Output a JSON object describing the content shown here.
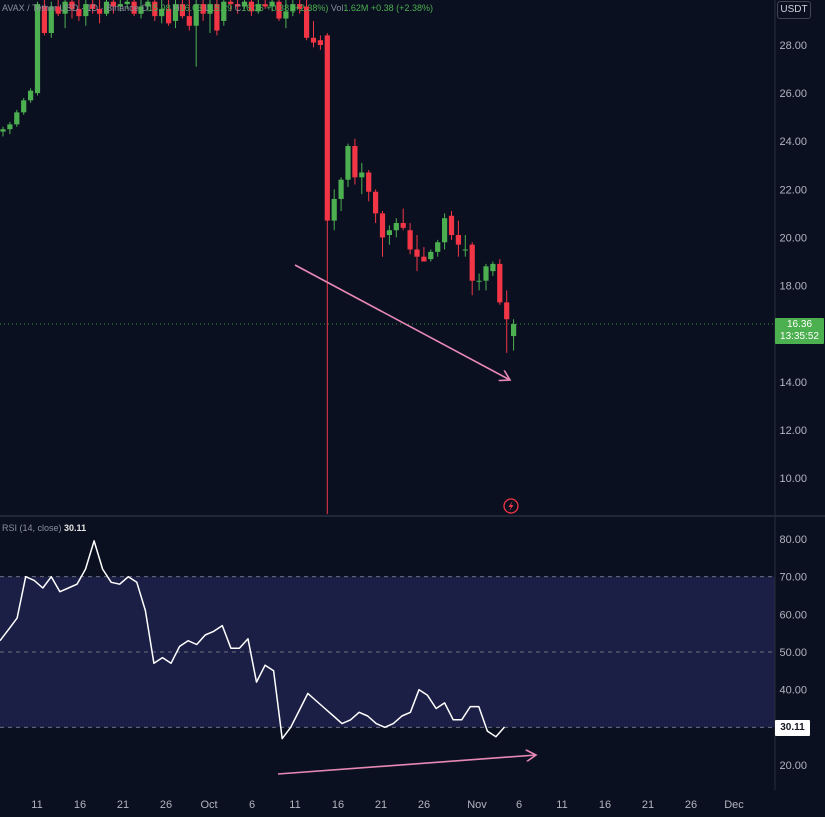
{
  "header": {
    "symbol": "AVAX / Tether USD",
    "interval": "1D",
    "exchange": "Binance",
    "ohlc": [
      {
        "label": "O",
        "value": "15.98"
      },
      {
        "label": "H",
        "value": "16.63"
      },
      {
        "label": "L",
        "value": "15.29"
      },
      {
        "label": "C",
        "value": "16.36"
      }
    ],
    "change": "+0.38 (+2.38%)",
    "volume_label": "Vol",
    "volume_value": "1.62M",
    "volume_change": "+0.38 (+2.38%)"
  },
  "currency_badge": "USDT",
  "price_badge": {
    "price": "16.36",
    "countdown": "13:35:52"
  },
  "rsi_legend": {
    "label": "RSI (14, close)",
    "value": "30.11"
  },
  "rsi_badge": "30.11",
  "colors": {
    "background": "#0b1021",
    "up": "#4caf50",
    "down": "#f23645",
    "rsi_line": "#ffffff",
    "rsi_band": "#1c1f45",
    "arrow": "#e889b5",
    "alert_icon": "#f23645"
  },
  "icons": {
    "alert": "lightning-bolt-icon"
  },
  "chart_data": [
    {
      "type": "candlestick",
      "name": "price",
      "y_ticks": [
        "10.00",
        "12.00",
        "14.00",
        "16.00",
        "18.00",
        "20.00",
        "22.00",
        "24.00",
        "26.00",
        "28.00"
      ],
      "ylim": [
        8.5,
        29.7
      ],
      "x_ticks": [
        "11",
        "16",
        "21",
        "26",
        "Oct",
        "6",
        "11",
        "16",
        "21",
        "26",
        "Nov",
        "6",
        "11",
        "16",
        "21",
        "26",
        "Dec"
      ],
      "ohlc": [
        [
          24.4,
          24.6,
          24.2,
          24.5
        ],
        [
          24.5,
          24.8,
          24.3,
          24.7
        ],
        [
          24.7,
          25.3,
          24.6,
          25.2
        ],
        [
          25.2,
          25.8,
          25.1,
          25.7
        ],
        [
          25.7,
          26.2,
          25.6,
          26.1
        ],
        [
          26.0,
          29.8,
          25.9,
          29.7
        ],
        [
          29.6,
          29.9,
          28.4,
          28.5
        ],
        [
          28.5,
          29.8,
          28.3,
          29.6
        ],
        [
          29.6,
          29.9,
          29.2,
          29.3
        ],
        [
          29.3,
          29.9,
          28.7,
          29.8
        ],
        [
          29.8,
          29.9,
          29.1,
          29.5
        ],
        [
          29.5,
          29.9,
          29.0,
          29.2
        ],
        [
          29.2,
          29.9,
          28.8,
          29.7
        ],
        [
          29.7,
          29.9,
          29.3,
          29.5
        ],
        [
          29.5,
          29.9,
          28.9,
          29.3
        ],
        [
          29.3,
          29.9,
          29.2,
          29.8
        ],
        [
          29.8,
          29.9,
          29.3,
          29.6
        ],
        [
          29.6,
          29.9,
          29.4,
          29.7
        ],
        [
          29.7,
          29.9,
          29.5,
          29.8
        ],
        [
          29.8,
          29.9,
          29.2,
          29.3
        ],
        [
          29.3,
          29.9,
          29.1,
          29.6
        ],
        [
          29.6,
          29.9,
          29.4,
          29.8
        ],
        [
          29.8,
          29.9,
          29.0,
          29.2
        ],
        [
          29.2,
          29.9,
          28.9,
          29.5
        ],
        [
          29.5,
          29.9,
          28.8,
          28.9
        ],
        [
          29.0,
          29.9,
          28.7,
          29.7
        ],
        [
          29.7,
          29.9,
          29.1,
          29.2
        ],
        [
          29.2,
          29.9,
          28.6,
          28.8
        ],
        [
          28.8,
          29.9,
          27.1,
          29.7
        ],
        [
          29.7,
          29.9,
          29.0,
          29.3
        ],
        [
          29.3,
          29.9,
          28.5,
          29.7
        ],
        [
          29.7,
          29.9,
          28.4,
          28.6
        ],
        [
          29.0,
          29.9,
          28.8,
          29.8
        ],
        [
          29.8,
          29.9,
          29.4,
          29.7
        ],
        [
          29.7,
          29.9,
          29.3,
          29.6
        ],
        [
          29.6,
          29.9,
          29.5,
          29.8
        ],
        [
          29.8,
          29.9,
          29.2,
          29.4
        ],
        [
          29.4,
          29.9,
          29.3,
          29.7
        ],
        [
          29.7,
          29.9,
          29.5,
          29.6
        ],
        [
          29.6,
          29.9,
          29.4,
          29.8
        ],
        [
          29.8,
          29.9,
          29.0,
          29.1
        ],
        [
          29.1,
          29.9,
          28.7,
          29.4
        ],
        [
          29.4,
          29.9,
          29.2,
          29.7
        ],
        [
          29.7,
          29.9,
          29.3,
          29.5
        ],
        [
          29.6,
          29.9,
          28.2,
          28.3
        ],
        [
          28.3,
          29.0,
          27.9,
          28.1
        ],
        [
          28.2,
          28.4,
          27.8,
          28.0
        ],
        [
          28.4,
          28.5,
          8.5,
          20.7
        ],
        [
          20.7,
          22.0,
          20.3,
          21.6
        ],
        [
          21.6,
          22.5,
          21.1,
          22.4
        ],
        [
          22.4,
          23.9,
          22.1,
          23.8
        ],
        [
          23.8,
          24.1,
          22.2,
          22.5
        ],
        [
          22.5,
          23.1,
          21.8,
          22.7
        ],
        [
          22.7,
          22.8,
          21.5,
          21.9
        ],
        [
          21.9,
          22.0,
          20.6,
          21.0
        ],
        [
          21.0,
          21.1,
          19.2,
          20.0
        ],
        [
          20.1,
          20.5,
          19.7,
          20.3
        ],
        [
          20.3,
          20.8,
          20.0,
          20.6
        ],
        [
          20.6,
          21.2,
          20.3,
          20.4
        ],
        [
          20.3,
          20.6,
          19.3,
          19.5
        ],
        [
          19.5,
          20.1,
          18.6,
          19.2
        ],
        [
          19.2,
          19.6,
          19.0,
          19.0
        ],
        [
          19.1,
          19.5,
          19.0,
          19.4
        ],
        [
          19.4,
          19.9,
          19.2,
          19.8
        ],
        [
          19.8,
          21.0,
          19.5,
          20.8
        ],
        [
          20.9,
          21.1,
          19.9,
          20.1
        ],
        [
          20.1,
          20.7,
          19.2,
          19.7
        ],
        [
          19.5,
          20.1,
          19.2,
          19.5
        ],
        [
          19.7,
          19.8,
          17.6,
          18.2
        ],
        [
          18.2,
          18.5,
          17.8,
          18.2
        ],
        [
          18.2,
          18.9,
          17.8,
          18.8
        ],
        [
          18.6,
          19.0,
          18.4,
          18.9
        ],
        [
          18.9,
          19.1,
          17.2,
          17.3
        ],
        [
          17.3,
          17.8,
          15.2,
          16.6
        ],
        [
          15.9,
          16.6,
          15.3,
          16.4
        ]
      ]
    },
    {
      "type": "line",
      "name": "RSI",
      "y_ticks": [
        "20.00",
        "30.00",
        "40.00",
        "50.00",
        "60.00",
        "70.00",
        "80.00"
      ],
      "ylim": [
        16.4,
        83.2
      ],
      "band": [
        30,
        70
      ],
      "midline": 50,
      "values": [
        53,
        56,
        59,
        70,
        69,
        67,
        70,
        66,
        67,
        68,
        72,
        79.5,
        72,
        68.5,
        68,
        70,
        68.5,
        61,
        47,
        48.5,
        47,
        51.5,
        53,
        52,
        54.5,
        55.5,
        57,
        51,
        51,
        53.5,
        42,
        46.5,
        45,
        27,
        30,
        34.5,
        39,
        37,
        35,
        33,
        31,
        32,
        34,
        33,
        31,
        30,
        31,
        33,
        34,
        40,
        38.5,
        35,
        36.5,
        32,
        32,
        35.5,
        35.5,
        29,
        27.5,
        30.1
      ],
      "current": 30.11
    }
  ]
}
